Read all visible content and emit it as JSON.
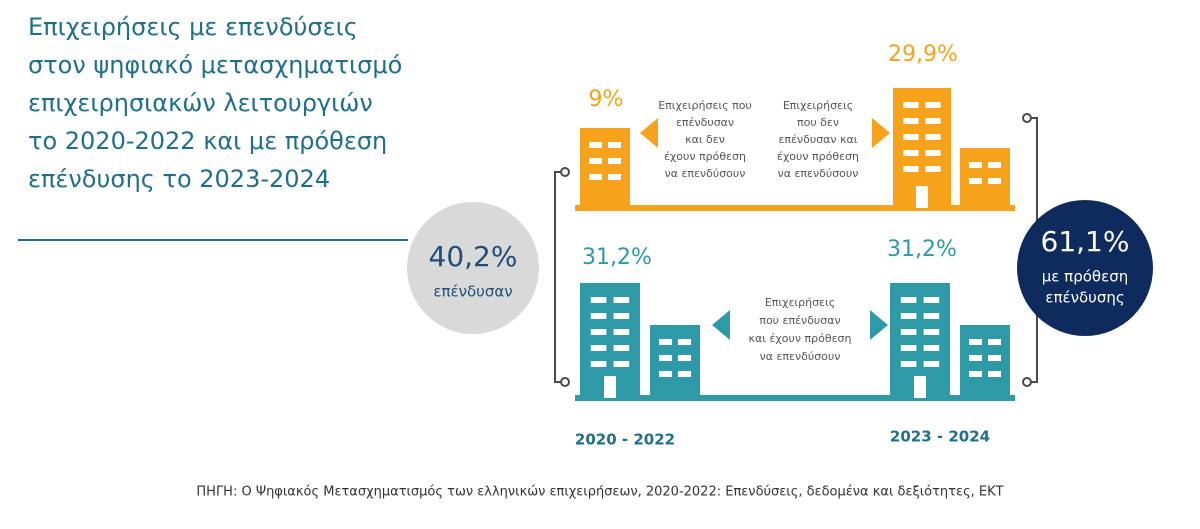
{
  "title": [
    "Επιχειρήσεις με επενδύσεις",
    "στον ψηφιακό μετασχηματισμό",
    "επιχειρησιακών λειτουργιών",
    "το 2020-2022 και με πρόθεση",
    "επένδυσης το 2023-2024"
  ],
  "left_circle": {
    "value": "40,2%",
    "label": "επένδυσαν"
  },
  "right_circle": {
    "value": "61,1%",
    "label": [
      "με πρόθεση",
      "επένδυσης"
    ]
  },
  "top_row": {
    "left_value": "9%",
    "left_label": [
      "Επιχειρήσεις που",
      "επένδυσαν",
      "και δεν",
      "έχουν πρόθεση",
      "να επενδύσουν"
    ],
    "right_value": "29,9%",
    "right_label": [
      "Επιχειρήσεις",
      "που δεν",
      "επένδυσαν και",
      "έχουν πρόθεση",
      "να επενδύσουν"
    ]
  },
  "bottom_row": {
    "left_value": "31,2%",
    "right_value": "31,2%",
    "label": [
      "Επιχειρήσεις",
      "που επένδυσαν",
      "και έχουν πρόθεση",
      "να επενδύσουν"
    ]
  },
  "periods": [
    "2020 - 2022",
    "2023 - 2024"
  ],
  "source": "ΠΗΓΗ: Ο Ψηφιακός Μετασχηματισμός των ελληνικών επιχειρήσεων, 2020-2022: Επενδύσεις, δεδομένα και δεξιότητες, ΕΚΤ"
}
